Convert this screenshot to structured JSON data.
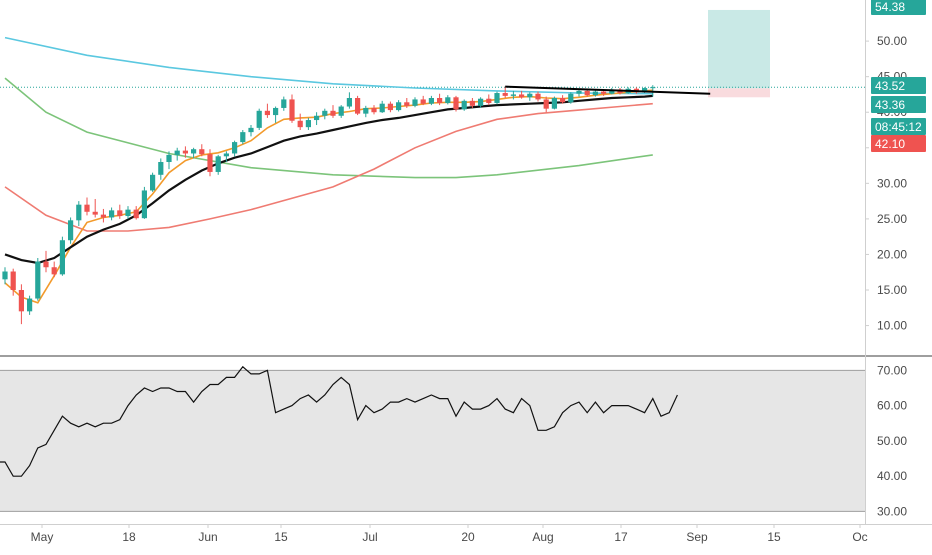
{
  "chart_data": [
    {
      "type": "candlestick",
      "panel": "price",
      "y_ticks": [
        "10.00",
        "15.00",
        "20.00",
        "25.00",
        "30.00",
        "35.00",
        "40.00",
        "45.00",
        "50.00"
      ],
      "ylim": [
        6,
        55.5
      ],
      "x_ticks": [
        "May",
        "18",
        "Jun",
        "15",
        "Jul",
        "20",
        "Aug",
        "17",
        "Sep",
        "15",
        "Oc"
      ],
      "candles": [
        [
          16.5,
          18.2,
          15.8,
          17.6
        ],
        [
          17.6,
          18.0,
          14.2,
          15.0
        ],
        [
          15.0,
          15.8,
          10.2,
          12.0
        ],
        [
          12.0,
          14.2,
          11.5,
          13.8
        ],
        [
          13.8,
          19.5,
          13.5,
          19.0
        ],
        [
          19.0,
          20.5,
          17.5,
          18.2
        ],
        [
          18.2,
          19.0,
          16.8,
          17.2
        ],
        [
          17.2,
          22.5,
          17.0,
          22.0
        ],
        [
          22.0,
          25.2,
          21.5,
          24.8
        ],
        [
          24.8,
          27.5,
          24.0,
          27.0
        ],
        [
          27.0,
          28.0,
          25.5,
          26.0
        ],
        [
          26.0,
          27.8,
          25.2,
          25.6
        ],
        [
          25.6,
          26.4,
          24.5,
          25.2
        ],
        [
          25.2,
          26.6,
          24.8,
          26.2
        ],
        [
          26.2,
          27.0,
          25.0,
          25.4
        ],
        [
          25.4,
          26.8,
          25.0,
          26.3
        ],
        [
          26.3,
          26.8,
          24.9,
          25.1
        ],
        [
          25.1,
          29.5,
          25.0,
          29.0
        ],
        [
          29.0,
          31.5,
          28.8,
          31.2
        ],
        [
          31.2,
          33.5,
          30.5,
          33.0
        ],
        [
          33.0,
          34.5,
          32.0,
          34.0
        ],
        [
          34.0,
          35.0,
          33.2,
          34.6
        ],
        [
          34.6,
          35.2,
          33.6,
          34.2
        ],
        [
          34.2,
          35.0,
          33.5,
          34.8
        ],
        [
          34.8,
          35.5,
          33.8,
          34.1
        ],
        [
          34.1,
          34.8,
          31.0,
          31.6
        ],
        [
          31.6,
          34.0,
          31.2,
          33.8
        ],
        [
          33.8,
          34.5,
          33.0,
          34.2
        ],
        [
          34.2,
          36.0,
          33.8,
          35.8
        ],
        [
          35.8,
          37.5,
          35.5,
          37.2
        ],
        [
          37.2,
          38.2,
          36.6,
          37.8
        ],
        [
          37.8,
          40.5,
          37.5,
          40.2
        ],
        [
          40.2,
          41.2,
          39.2,
          39.6
        ],
        [
          39.6,
          40.8,
          38.5,
          40.6
        ],
        [
          40.6,
          42.2,
          40.2,
          41.8
        ],
        [
          41.8,
          42.5,
          38.5,
          38.8
        ],
        [
          38.8,
          39.8,
          37.5,
          37.9
        ],
        [
          37.9,
          39.2,
          37.5,
          38.9
        ],
        [
          38.9,
          40.0,
          38.2,
          39.5
        ],
        [
          39.5,
          40.5,
          39.0,
          40.2
        ],
        [
          40.2,
          41.0,
          39.2,
          39.5
        ],
        [
          39.5,
          41.0,
          39.2,
          40.8
        ],
        [
          40.8,
          42.8,
          40.5,
          42.0
        ],
        [
          42.0,
          42.3,
          39.6,
          39.8
        ],
        [
          39.8,
          40.9,
          39.3,
          40.6
        ],
        [
          40.6,
          41.0,
          39.7,
          40.0
        ],
        [
          40.0,
          41.6,
          39.9,
          41.2
        ],
        [
          41.2,
          41.5,
          40.0,
          40.3
        ],
        [
          40.3,
          41.7,
          40.1,
          41.4
        ],
        [
          41.4,
          42.0,
          40.6,
          40.9
        ],
        [
          40.9,
          42.1,
          40.7,
          41.8
        ],
        [
          41.8,
          42.3,
          41.0,
          41.2
        ],
        [
          41.2,
          42.3,
          41.0,
          42.0
        ],
        [
          42.0,
          42.6,
          41.0,
          41.3
        ],
        [
          41.3,
          42.4,
          41.1,
          42.1
        ],
        [
          42.1,
          42.3,
          40.1,
          40.4
        ],
        [
          40.4,
          41.8,
          40.2,
          41.6
        ],
        [
          41.6,
          42.0,
          40.6,
          40.9
        ],
        [
          40.9,
          42.1,
          40.6,
          41.9
        ],
        [
          41.9,
          42.5,
          41.0,
          41.3
        ],
        [
          41.3,
          42.9,
          41.1,
          42.7
        ],
        [
          42.7,
          43.6,
          42.0,
          42.3
        ],
        [
          42.3,
          43.0,
          41.8,
          42.5
        ],
        [
          42.5,
          43.0,
          41.9,
          42.1
        ],
        [
          42.1,
          42.8,
          41.6,
          42.6
        ],
        [
          42.6,
          42.9,
          41.5,
          41.8
        ],
        [
          41.8,
          42.2,
          40.0,
          40.5
        ],
        [
          40.5,
          42.2,
          40.4,
          42.0
        ],
        [
          42.0,
          42.4,
          41.2,
          41.4
        ],
        [
          41.4,
          42.8,
          41.2,
          42.6
        ],
        [
          42.6,
          43.3,
          42.2,
          43.0
        ],
        [
          43.0,
          43.3,
          42.2,
          42.4
        ],
        [
          42.4,
          43.1,
          42.2,
          42.9
        ],
        [
          42.9,
          43.2,
          42.3,
          42.6
        ],
        [
          42.6,
          43.4,
          42.5,
          43.2
        ],
        [
          43.2,
          43.4,
          42.5,
          42.7
        ],
        [
          42.7,
          43.5,
          42.6,
          43.3
        ],
        [
          43.3,
          43.5,
          42.6,
          42.8
        ],
        [
          42.8,
          43.5,
          42.7,
          43.4
        ],
        [
          43.4,
          43.8,
          42.2,
          43.52
        ]
      ],
      "series": [
        {
          "name": "",
          "color": "#5bc8e0",
          "points": [
            [
              0,
              50.5
            ],
            [
              10,
              48.0
            ],
            [
              20,
              46.3
            ],
            [
              30,
              45.0
            ],
            [
              40,
              44.0
            ],
            [
              50,
              43.4
            ],
            [
              60,
              43.0
            ],
            [
              70,
              42.7
            ],
            [
              79,
              42.6
            ]
          ]
        },
        {
          "name": "",
          "color": "#7cc47a",
          "points": [
            [
              0,
              44.8
            ],
            [
              5,
              40.0
            ],
            [
              10,
              37.2
            ],
            [
              20,
              34.2
            ],
            [
              30,
              32.2
            ],
            [
              40,
              31.2
            ],
            [
              50,
              30.8
            ],
            [
              55,
              30.8
            ],
            [
              60,
              31.2
            ],
            [
              70,
              32.5
            ],
            [
              79,
              34.0
            ]
          ]
        },
        {
          "name": "",
          "color": "#ef7b72",
          "points": [
            [
              0,
              29.5
            ],
            [
              5,
              25.5
            ],
            [
              10,
              23.3
            ],
            [
              15,
              23.3
            ],
            [
              20,
              23.8
            ],
            [
              25,
              25.0
            ],
            [
              30,
              26.3
            ],
            [
              40,
              29.5
            ],
            [
              45,
              32.0
            ],
            [
              50,
              35.0
            ],
            [
              55,
              37.3
            ],
            [
              60,
              39.0
            ],
            [
              65,
              39.8
            ],
            [
              70,
              40.3
            ],
            [
              75,
              40.8
            ],
            [
              79,
              41.2
            ]
          ]
        },
        {
          "name": "",
          "color": "#f39a2b",
          "points": [
            [
              0,
              16.0
            ],
            [
              2,
              14.0
            ],
            [
              4,
              13.2
            ],
            [
              6,
              17.0
            ],
            [
              8,
              21.0
            ],
            [
              10,
              24.5
            ],
            [
              12,
              25.2
            ],
            [
              14,
              25.5
            ],
            [
              16,
              26.0
            ],
            [
              18,
              28.5
            ],
            [
              20,
              31.5
            ],
            [
              22,
              33.2
            ],
            [
              24,
              34.0
            ],
            [
              26,
              34.3
            ],
            [
              28,
              35.0
            ],
            [
              30,
              36.0
            ],
            [
              32,
              37.8
            ],
            [
              34,
              39.0
            ],
            [
              36,
              39.2
            ],
            [
              38,
              39.3
            ],
            [
              40,
              39.8
            ],
            [
              42,
              40.1
            ],
            [
              44,
              40.5
            ],
            [
              46,
              40.6
            ],
            [
              48,
              40.8
            ],
            [
              50,
              41.0
            ],
            [
              52,
              41.3
            ],
            [
              54,
              41.4
            ],
            [
              56,
              41.4
            ],
            [
              58,
              41.5
            ],
            [
              60,
              41.8
            ],
            [
              62,
              42.1
            ],
            [
              64,
              42.2
            ],
            [
              66,
              42.0
            ],
            [
              68,
              41.9
            ],
            [
              70,
              42.1
            ],
            [
              72,
              42.4
            ],
            [
              74,
              42.6
            ],
            [
              76,
              42.8
            ],
            [
              78,
              43.0
            ],
            [
              79,
              43.1
            ]
          ]
        },
        {
          "name": "",
          "color": "#111111",
          "points": [
            [
              0,
              20.0
            ],
            [
              2,
              19.2
            ],
            [
              4,
              18.8
            ],
            [
              6,
              19.5
            ],
            [
              8,
              21.0
            ],
            [
              10,
              22.5
            ],
            [
              12,
              23.5
            ],
            [
              14,
              24.3
            ],
            [
              16,
              25.5
            ],
            [
              18,
              27.2
            ],
            [
              20,
              29.0
            ],
            [
              22,
              30.5
            ],
            [
              24,
              31.8
            ],
            [
              26,
              32.8
            ],
            [
              28,
              33.6
            ],
            [
              30,
              34.2
            ],
            [
              32,
              35.1
            ],
            [
              34,
              36.0
            ],
            [
              36,
              36.6
            ],
            [
              38,
              37.0
            ],
            [
              40,
              37.5
            ],
            [
              42,
              38.0
            ],
            [
              44,
              38.5
            ],
            [
              46,
              38.9
            ],
            [
              48,
              39.2
            ],
            [
              50,
              39.6
            ],
            [
              52,
              40.0
            ],
            [
              54,
              40.4
            ],
            [
              56,
              40.6
            ],
            [
              58,
              40.8
            ],
            [
              60,
              41.0
            ],
            [
              62,
              41.1
            ],
            [
              64,
              41.2
            ],
            [
              66,
              41.3
            ],
            [
              68,
              41.4
            ],
            [
              70,
              41.6
            ],
            [
              72,
              41.8
            ],
            [
              74,
              42.0
            ],
            [
              76,
              42.1
            ],
            [
              78,
              42.2
            ],
            [
              79,
              42.3
            ]
          ]
        }
      ],
      "trendline": [
        [
          61,
          43.6
        ],
        [
          86,
          42.6
        ]
      ],
      "last_price": 43.52,
      "position_box": {
        "target": 54.38,
        "entry": 43.36,
        "stop": 42.1
      },
      "price_labels": [
        {
          "text": "54.38",
          "value": 54.38,
          "color": "#26a69a"
        },
        {
          "text": "43.52",
          "value": 43.52,
          "color": "#26a69a"
        },
        {
          "text": "43.36",
          "value": 43.36,
          "color": "#26a69a"
        },
        {
          "text": "08:45:12",
          "value": 42.6,
          "color": "#26a69a"
        },
        {
          "text": "42.10",
          "value": 42.1,
          "color": "#ef5350"
        }
      ]
    },
    {
      "type": "line",
      "panel": "oscillator",
      "y_ticks": [
        "30.00",
        "40.00",
        "50.00",
        "60.00",
        "70.00"
      ],
      "ylim": [
        27,
        73.5
      ],
      "band": [
        30,
        70
      ],
      "values": [
        44,
        44,
        40,
        40,
        43,
        48,
        49,
        53,
        57,
        55,
        54,
        55,
        54,
        55,
        55,
        56,
        60,
        63,
        65,
        64,
        65,
        65,
        64,
        64,
        61,
        64,
        66,
        66,
        68,
        68,
        71,
        69,
        69,
        70,
        58,
        59,
        60,
        62,
        63,
        61,
        63,
        66,
        68,
        66,
        56,
        60,
        58,
        59,
        61,
        61,
        62,
        61,
        62,
        63,
        62,
        62,
        57,
        61,
        59,
        59,
        60,
        62,
        59,
        58,
        62,
        60,
        53,
        53,
        54,
        58,
        60,
        61,
        58,
        61,
        58,
        60,
        60,
        60,
        59,
        58,
        62,
        57,
        58,
        63
      ]
    }
  ]
}
